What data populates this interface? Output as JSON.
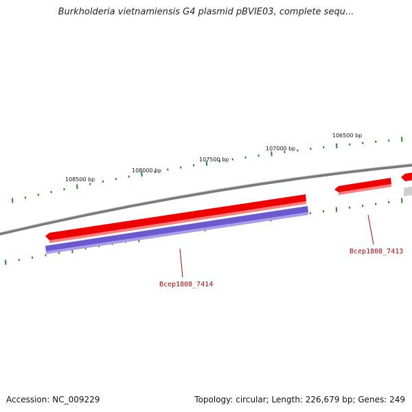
{
  "title": "Burkholderia vietnamiensis G4 plasmid pBVIE03, complete sequ...",
  "footer": {
    "accession": "Accession: NC_009229",
    "summary": "Topology: circular; Length: 226,679 bp; Genes: 249"
  },
  "ticks": {
    "labels": [
      "108500 bp",
      "108000 bp",
      "107500 bp",
      "107000 bp",
      "106500 bp"
    ]
  },
  "genes": [
    {
      "name": "Bcep1808_7414",
      "color": "#ee0000"
    },
    {
      "name": "Bcep1808_7413",
      "color": "#ee0000"
    }
  ],
  "colors": {
    "backbone": "#888888",
    "gene_forward": "#ee0000",
    "cds": "#6a5acd",
    "ticks": "#228b22",
    "label_line": "#cc0000"
  }
}
